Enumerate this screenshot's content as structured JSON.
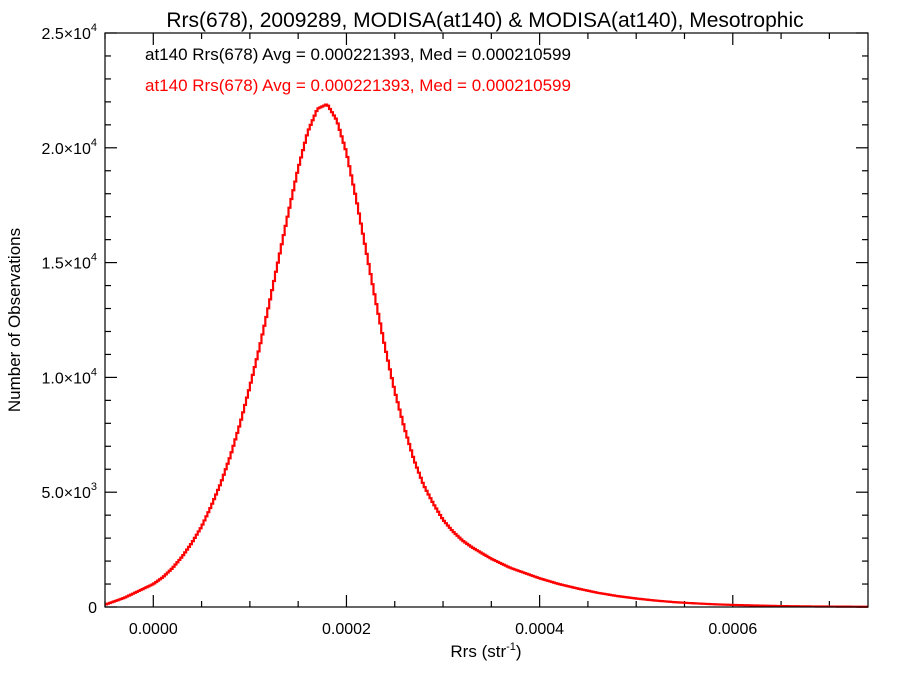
{
  "chart_data": {
    "type": "histogram",
    "title": "Rrs(678), 2009289, MODISA(at140) & MODISA(at140), Mesotrophic",
    "xlabel_base": "Rrs (str",
    "xlabel_sup": "-1",
    "xlabel_tail": ")",
    "ylabel": "Number of Observations",
    "xlim": [
      -5e-05,
      0.00074
    ],
    "ylim": [
      0,
      25000
    ],
    "x_ticks": [
      {
        "value": 0.0,
        "label": "0.0000"
      },
      {
        "value": 0.0002,
        "label": "0.0002"
      },
      {
        "value": 0.0004,
        "label": "0.0004"
      },
      {
        "value": 0.0006,
        "label": "0.0006"
      }
    ],
    "y_ticks": [
      {
        "value": 0,
        "mant": "0",
        "exp": ""
      },
      {
        "value": 5000,
        "mant": "5.0×10",
        "exp": "3"
      },
      {
        "value": 10000,
        "mant": "1.0×10",
        "exp": "4"
      },
      {
        "value": 15000,
        "mant": "1.5×10",
        "exp": "4"
      },
      {
        "value": 20000,
        "mant": "2.0×10",
        "exp": "4"
      },
      {
        "value": 25000,
        "mant": "2.5×10",
        "exp": "4"
      }
    ],
    "annotations": [
      {
        "text": "at140 Rrs(678) Avg = 0.000221393, Med = 0.000210599",
        "color": "#000000"
      },
      {
        "text": "at140 Rrs(678) Avg = 0.000221393, Med = 0.000210599",
        "color": "#ff0000"
      }
    ],
    "series": [
      {
        "color": "#ff0000",
        "x": [
          -5e-05,
          -4e-05,
          -3e-05,
          -2e-05,
          -1e-05,
          0.0,
          1e-05,
          2e-05,
          3e-05,
          4e-05,
          5e-05,
          6e-05,
          7e-05,
          8e-05,
          9e-05,
          0.0001,
          0.00011,
          0.00012,
          0.00013,
          0.00014,
          0.00015,
          0.00016,
          0.00017,
          0.00018,
          0.00019,
          0.0002,
          0.00021,
          0.00022,
          0.00023,
          0.00024,
          0.00025,
          0.00026,
          0.00027,
          0.00028,
          0.00029,
          0.0003,
          0.00031,
          0.00032,
          0.00033,
          0.00034,
          0.00035,
          0.00036,
          0.00037,
          0.00038,
          0.00039,
          0.0004,
          0.00042,
          0.00044,
          0.00046,
          0.00048,
          0.0005,
          0.00052,
          0.00054,
          0.00056,
          0.00058,
          0.0006,
          0.00062,
          0.00064,
          0.00066,
          0.00068,
          0.0007,
          0.00072,
          0.00074
        ],
        "y": [
          100,
          250,
          400,
          600,
          800,
          1000,
          1300,
          1700,
          2200,
          2800,
          3500,
          4400,
          5400,
          6600,
          8000,
          9600,
          11300,
          13200,
          15200,
          17200,
          19100,
          20700,
          21700,
          21900,
          21200,
          19800,
          17800,
          15600,
          13400,
          11300,
          9400,
          7800,
          6400,
          5300,
          4500,
          3800,
          3300,
          2900,
          2600,
          2350,
          2100,
          1900,
          1700,
          1550,
          1400,
          1250,
          1000,
          800,
          620,
          480,
          370,
          280,
          210,
          160,
          120,
          90,
          70,
          50,
          35,
          25,
          20,
          15,
          10
        ]
      }
    ]
  }
}
